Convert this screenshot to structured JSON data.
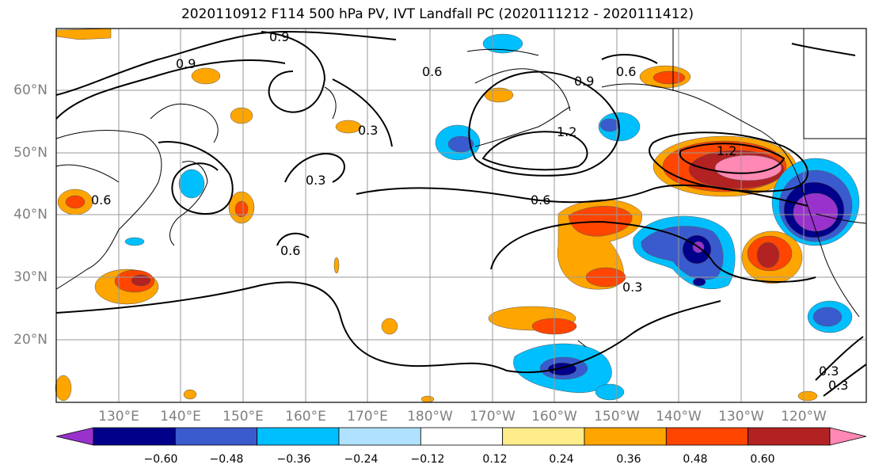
{
  "title": "2020110912 F114 500 hPa PV, IVT Landfall PC (2020111212 - 2020111412)",
  "lat_labels": [
    "60°N",
    "50°N",
    "40°N",
    "30°N",
    "20°N"
  ],
  "lon_labels": [
    "130°E",
    "140°E",
    "150°E",
    "160°E",
    "170°E",
    "180°W",
    "170°W",
    "160°W",
    "150°W",
    "140°W",
    "130°W",
    "120°W"
  ],
  "contour_labels": [
    "0.9",
    "0.9",
    "0.6",
    "0.6",
    "0.9",
    "0.6",
    "0.3",
    "0.3",
    "0.6",
    "0.6",
    "1.2",
    "0.3",
    "0.3",
    "0.3",
    "1.2"
  ],
  "colorbar": {
    "ticks": [
      "−0.60",
      "−0.48",
      "−0.36",
      "−0.24",
      "−0.12",
      "0.12",
      "0.24",
      "0.36",
      "0.48",
      "0.60"
    ],
    "colors": [
      "#9932cc",
      "#00008b",
      "#3a5bcd",
      "#00bfff",
      "#b0e2ff",
      "#ffffff",
      "#ffec8b",
      "#ffa500",
      "#ff4500",
      "#b22222",
      "#ff88b4"
    ]
  }
}
